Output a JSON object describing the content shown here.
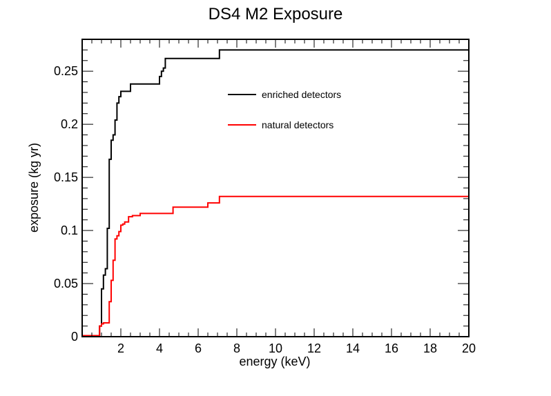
{
  "chart_data": {
    "type": "line",
    "step": true,
    "title": "DS4 M2 Exposure",
    "xlabel": "energy (keV)",
    "ylabel": "exposure (kg yr)",
    "xlim": [
      0,
      20
    ],
    "ylim": [
      0,
      0.28
    ],
    "x_ticks": [
      2,
      4,
      6,
      8,
      10,
      12,
      14,
      16,
      18,
      20
    ],
    "x_tick_labels": [
      "2",
      "4",
      "6",
      "8",
      "10",
      "12",
      "14",
      "16",
      "18",
      "20"
    ],
    "y_ticks": [
      0,
      0.05,
      0.1,
      0.15,
      0.2,
      0.25
    ],
    "y_tick_labels": [
      "0",
      "0.05",
      "0.1",
      "0.15",
      "0.2",
      "0.25"
    ],
    "grid": false,
    "legend_position": "top-right",
    "series": [
      {
        "name": "enriched detectors",
        "color": "#000000",
        "x": [
          0,
          0.9,
          1.0,
          1.1,
          1.2,
          1.3,
          1.4,
          1.5,
          1.6,
          1.7,
          1.8,
          1.9,
          2.0,
          2.1,
          2.2,
          2.5,
          4.0,
          4.1,
          4.2,
          4.3,
          7.1,
          20
        ],
        "y": [
          0.001,
          0.01,
          0.045,
          0.058,
          0.064,
          0.102,
          0.167,
          0.185,
          0.19,
          0.204,
          0.22,
          0.226,
          0.231,
          0.231,
          0.231,
          0.238,
          0.245,
          0.25,
          0.253,
          0.262,
          0.27,
          0.27
        ]
      },
      {
        "name": "natural detectors",
        "color": "#ff0000",
        "x": [
          0,
          0.9,
          1.0,
          1.1,
          1.4,
          1.5,
          1.6,
          1.7,
          1.8,
          1.9,
          2.0,
          2.1,
          2.2,
          2.4,
          2.6,
          3.0,
          4.7,
          6.5,
          7.1,
          20
        ],
        "y": [
          0.001,
          0.01,
          0.012,
          0.013,
          0.033,
          0.053,
          0.072,
          0.092,
          0.095,
          0.099,
          0.105,
          0.106,
          0.108,
          0.113,
          0.114,
          0.116,
          0.122,
          0.126,
          0.132,
          0.132
        ]
      }
    ]
  }
}
